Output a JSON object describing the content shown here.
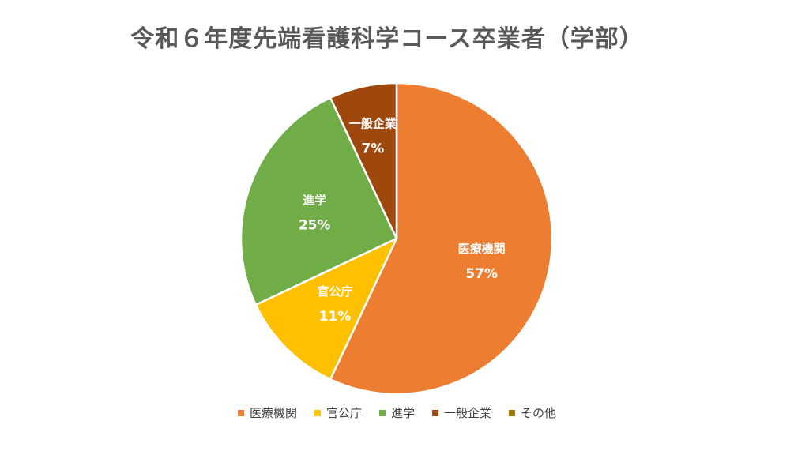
{
  "chart_data": {
    "type": "pie",
    "title": "令和６年度先端看護科学コース卒業者（学部）",
    "slices": [
      {
        "name": "医療機関",
        "value": 57,
        "label": "57%",
        "color": "#ED7D31"
      },
      {
        "name": "官公庁",
        "value": 11,
        "label": "11%",
        "color": "#FFC000"
      },
      {
        "name": "進学",
        "value": 25,
        "label": "25%",
        "color": "#70AD47"
      },
      {
        "name": "一般企業",
        "value": 7,
        "label": "7%",
        "color": "#9E480E"
      },
      {
        "name": "その他",
        "value": 0,
        "label": "",
        "color": "#997300"
      }
    ],
    "legend_position": "bottom",
    "start_angle": "12 o'clock",
    "direction": "clockwise"
  }
}
